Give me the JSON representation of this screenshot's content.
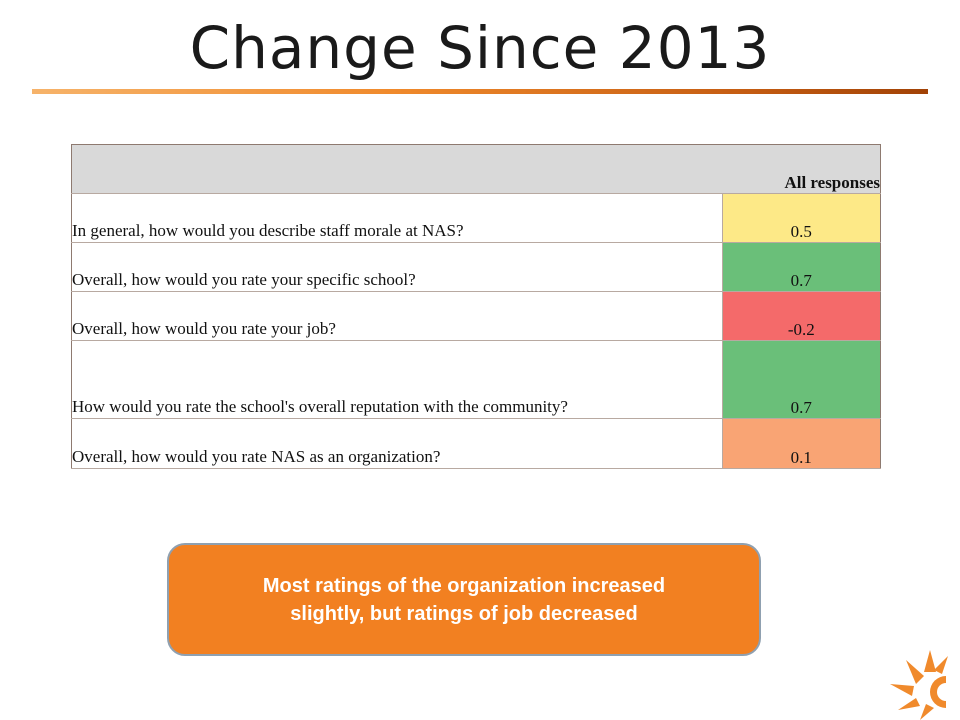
{
  "slide": {
    "title": "Change Since 2013",
    "accent_color": "#f08a2c"
  },
  "table": {
    "header": "All responses",
    "rows": [
      {
        "question": "In general, how would you describe staff morale at NAS?",
        "value": "0.5",
        "color": "#fde987"
      },
      {
        "question": "Overall, how would you rate your specific school?",
        "value": "0.7",
        "color": "#6abf79"
      },
      {
        "question": "Overall, how would you rate your job?",
        "value": "-0.2",
        "color": "#f46a6a"
      },
      {
        "question": "How would you rate the school's overall reputation with the community?",
        "value": "0.7",
        "color": "#6abf79"
      },
      {
        "question": "Overall, how would you rate NAS as an organization?",
        "value": "0.1",
        "color": "#f9a474"
      }
    ]
  },
  "callout": {
    "line1": "Most ratings of the organization increased",
    "line2": "slightly, but ratings of job decreased",
    "color": "#f28021"
  },
  "logo": {
    "icon": "sun-icon"
  }
}
